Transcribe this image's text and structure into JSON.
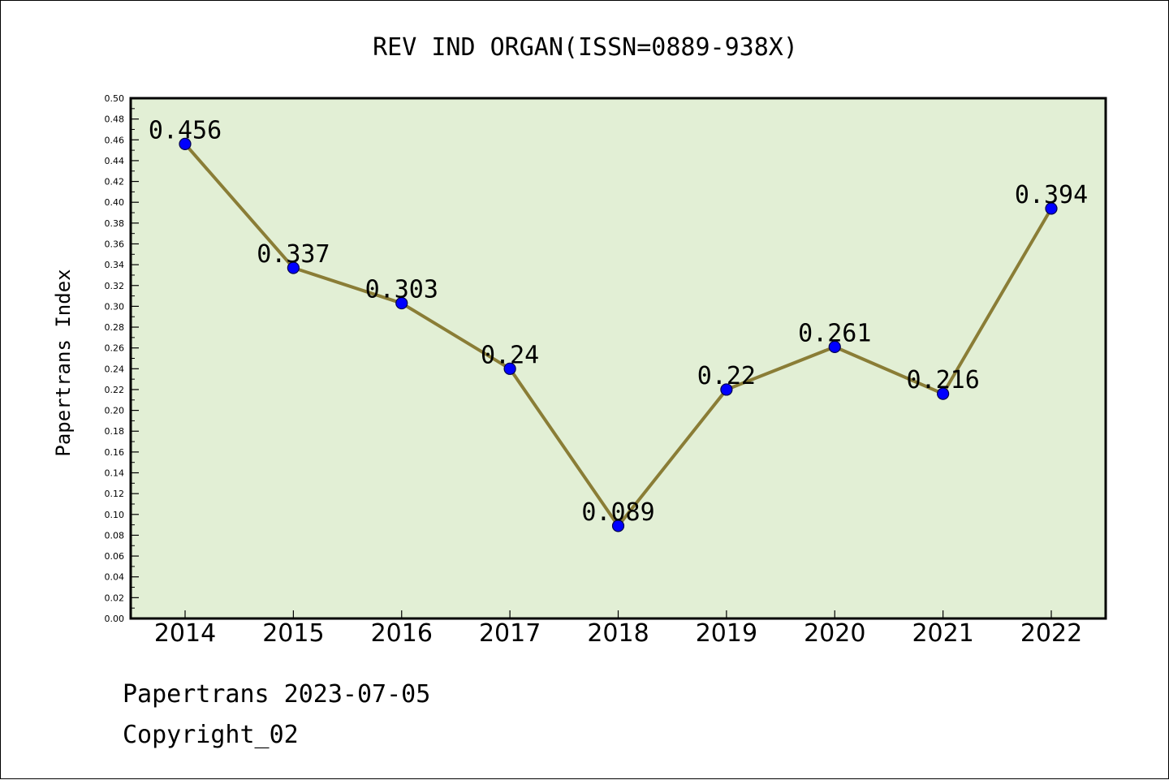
{
  "chart_data": {
    "type": "line",
    "title": "REV IND ORGAN(ISSN=0889-938X)",
    "xlabel": "",
    "ylabel": "Papertrans Index",
    "categories": [
      "2014",
      "2015",
      "2016",
      "2017",
      "2018",
      "2019",
      "2020",
      "2021",
      "2022"
    ],
    "series": [
      {
        "values": [
          0.456,
          0.337,
          0.303,
          0.24,
          0.089,
          0.22,
          0.261,
          0.216,
          0.394
        ],
        "labels": [
          "0.456",
          "0.337",
          "0.303",
          "0.24",
          "0.089",
          "0.22",
          "0.261",
          "0.216",
          "0.394"
        ]
      }
    ],
    "ylim": [
      0,
      0.5
    ],
    "ytick_step": 0.02,
    "yticks": [
      "0.00",
      "0.02",
      "0.04",
      "0.06",
      "0.08",
      "0.10",
      "0.12",
      "0.14",
      "0.16",
      "0.18",
      "0.20",
      "0.22",
      "0.24",
      "0.26",
      "0.28",
      "0.30",
      "0.32",
      "0.34",
      "0.36",
      "0.38",
      "0.40",
      "0.42",
      "0.44",
      "0.46",
      "0.48",
      "0.50"
    ],
    "grid": false,
    "colors": {
      "plot_background": "#e2efd5",
      "line": "#8a7d36",
      "marker_fill": "#0000ff",
      "marker_stroke": "#00004d"
    }
  },
  "footer": {
    "line1": "Papertrans 2023-07-05",
    "line2": "Copyright_02"
  }
}
